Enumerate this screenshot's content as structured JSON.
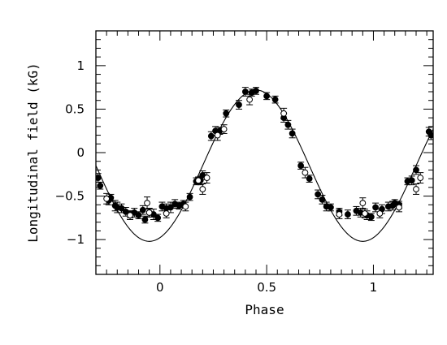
{
  "chart_data": {
    "type": "scatter",
    "xlabel": "Phase",
    "ylabel": "Longitudinal field (kG)",
    "xlim": [
      -0.3,
      1.28
    ],
    "ylim": [
      -1.4,
      1.4
    ],
    "x_ticks": [
      0,
      0.5,
      1
    ],
    "x_tick_labels": [
      "0",
      "0.5",
      "1"
    ],
    "y_ticks": [
      -1,
      -0.5,
      0,
      0.5,
      1
    ],
    "y_tick_labels": [
      "−1",
      "−0.5",
      "0",
      "0.5",
      "1"
    ],
    "grid": false,
    "colors": {
      "axis": "#000000",
      "markers": "#000000",
      "curve": "#000000",
      "background": "#ffffff"
    },
    "model_curve": {
      "type": "sinusoid",
      "mean": -0.15,
      "amplitude": 0.87,
      "phase_of_max": 0.45,
      "period": 1.0
    },
    "series": [
      {
        "marker": "filled-circle",
        "points": [
          {
            "x": -0.29,
            "y": -0.29,
            "err": 0.05
          },
          {
            "x": -0.28,
            "y": -0.38,
            "err": 0.04
          },
          {
            "x": -0.24,
            "y": -0.55,
            "err": 0.05
          },
          {
            "x": -0.23,
            "y": -0.52,
            "err": 0.04
          },
          {
            "x": -0.21,
            "y": -0.61,
            "err": 0.06
          },
          {
            "x": -0.2,
            "y": -0.63,
            "err": 0.06
          },
          {
            "x": -0.18,
            "y": -0.64,
            "err": 0.05
          },
          {
            "x": -0.16,
            "y": -0.68,
            "err": 0.05
          },
          {
            "x": -0.14,
            "y": -0.71,
            "err": 0.04
          },
          {
            "x": -0.12,
            "y": -0.69,
            "err": 0.05
          },
          {
            "x": -0.1,
            "y": -0.72,
            "err": 0.04
          },
          {
            "x": -0.08,
            "y": -0.66,
            "err": 0.05
          },
          {
            "x": -0.07,
            "y": -0.77,
            "err": 0.04
          },
          {
            "x": -0.05,
            "y": -0.69,
            "err": 0.05
          },
          {
            "x": -0.03,
            "y": -0.71,
            "err": 0.06
          },
          {
            "x": -0.01,
            "y": -0.75,
            "err": 0.04
          },
          {
            "x": 0.01,
            "y": -0.62,
            "err": 0.05
          },
          {
            "x": 0.03,
            "y": -0.64,
            "err": 0.05
          },
          {
            "x": 0.05,
            "y": -0.63,
            "err": 0.06
          },
          {
            "x": 0.07,
            "y": -0.59,
            "err": 0.05
          },
          {
            "x": 0.09,
            "y": -0.61,
            "err": 0.04
          },
          {
            "x": 0.11,
            "y": -0.59,
            "err": 0.04
          },
          {
            "x": 0.14,
            "y": -0.51,
            "err": 0.04
          },
          {
            "x": 0.17,
            "y": -0.33,
            "err": 0.04
          },
          {
            "x": 0.19,
            "y": -0.32,
            "err": 0.05
          },
          {
            "x": 0.2,
            "y": -0.26,
            "err": 0.05
          },
          {
            "x": 0.24,
            "y": 0.19,
            "err": 0.05
          },
          {
            "x": 0.26,
            "y": 0.25,
            "err": 0.05
          },
          {
            "x": 0.28,
            "y": 0.25,
            "err": 0.04
          },
          {
            "x": 0.31,
            "y": 0.45,
            "err": 0.04
          },
          {
            "x": 0.37,
            "y": 0.55,
            "err": 0.05
          },
          {
            "x": 0.4,
            "y": 0.7,
            "err": 0.05
          },
          {
            "x": 0.43,
            "y": 0.69,
            "err": 0.04
          },
          {
            "x": 0.45,
            "y": 0.71,
            "err": 0.04
          },
          {
            "x": 0.5,
            "y": 0.65,
            "err": 0.04
          },
          {
            "x": 0.54,
            "y": 0.61,
            "err": 0.04
          },
          {
            "x": 0.58,
            "y": 0.4,
            "err": 0.05
          },
          {
            "x": 0.6,
            "y": 0.32,
            "err": 0.05
          },
          {
            "x": 0.62,
            "y": 0.22,
            "err": 0.05
          },
          {
            "x": 0.66,
            "y": -0.15,
            "err": 0.04
          },
          {
            "x": 0.7,
            "y": -0.3,
            "err": 0.04
          },
          {
            "x": 0.74,
            "y": -0.48,
            "err": 0.05
          },
          {
            "x": 0.76,
            "y": -0.54,
            "err": 0.05
          },
          {
            "x": 0.78,
            "y": -0.62,
            "err": 0.05
          },
          {
            "x": 0.8,
            "y": -0.63,
            "err": 0.04
          },
          {
            "x": 0.84,
            "y": -0.68,
            "err": 0.04
          },
          {
            "x": 0.88,
            "y": -0.71,
            "err": 0.05
          },
          {
            "x": 0.92,
            "y": -0.67,
            "err": 0.05
          },
          {
            "x": 0.94,
            "y": -0.69,
            "err": 0.05
          },
          {
            "x": 0.97,
            "y": -0.72,
            "err": 0.05
          },
          {
            "x": 0.99,
            "y": -0.74,
            "err": 0.04
          },
          {
            "x": 1.01,
            "y": -0.63,
            "err": 0.05
          },
          {
            "x": 1.04,
            "y": -0.65,
            "err": 0.05
          },
          {
            "x": 1.07,
            "y": -0.62,
            "err": 0.05
          },
          {
            "x": 1.09,
            "y": -0.61,
            "err": 0.05
          },
          {
            "x": 1.1,
            "y": -0.58,
            "err": 0.04
          },
          {
            "x": 1.12,
            "y": -0.6,
            "err": 0.04
          },
          {
            "x": 1.16,
            "y": -0.33,
            "err": 0.04
          },
          {
            "x": 1.18,
            "y": -0.32,
            "err": 0.05
          },
          {
            "x": 1.2,
            "y": -0.2,
            "err": 0.05
          },
          {
            "x": 1.26,
            "y": 0.24,
            "err": 0.05
          },
          {
            "x": 1.27,
            "y": 0.2,
            "err": 0.05
          }
        ]
      },
      {
        "marker": "open-circle",
        "points": [
          {
            "x": -0.25,
            "y": -0.53,
            "err": 0.06
          },
          {
            "x": -0.14,
            "y": -0.72,
            "err": 0.05
          },
          {
            "x": -0.06,
            "y": -0.58,
            "err": 0.07
          },
          {
            "x": -0.05,
            "y": -0.69,
            "err": 0.05
          },
          {
            "x": 0.03,
            "y": -0.7,
            "err": 0.05
          },
          {
            "x": 0.12,
            "y": -0.62,
            "err": 0.05
          },
          {
            "x": 0.18,
            "y": -0.32,
            "err": 0.04
          },
          {
            "x": 0.2,
            "y": -0.42,
            "err": 0.06
          },
          {
            "x": 0.22,
            "y": -0.29,
            "err": 0.06
          },
          {
            "x": 0.27,
            "y": 0.2,
            "err": 0.06
          },
          {
            "x": 0.3,
            "y": 0.27,
            "err": 0.05
          },
          {
            "x": 0.42,
            "y": 0.61,
            "err": 0.06
          },
          {
            "x": 0.58,
            "y": 0.45,
            "err": 0.06
          },
          {
            "x": 0.68,
            "y": -0.23,
            "err": 0.06
          },
          {
            "x": 0.84,
            "y": -0.71,
            "err": 0.05
          },
          {
            "x": 0.95,
            "y": -0.58,
            "err": 0.06
          },
          {
            "x": 0.96,
            "y": -0.7,
            "err": 0.05
          },
          {
            "x": 1.03,
            "y": -0.7,
            "err": 0.05
          },
          {
            "x": 1.12,
            "y": -0.63,
            "err": 0.05
          },
          {
            "x": 1.2,
            "y": -0.42,
            "err": 0.06
          },
          {
            "x": 1.22,
            "y": -0.29,
            "err": 0.06
          }
        ]
      }
    ]
  }
}
